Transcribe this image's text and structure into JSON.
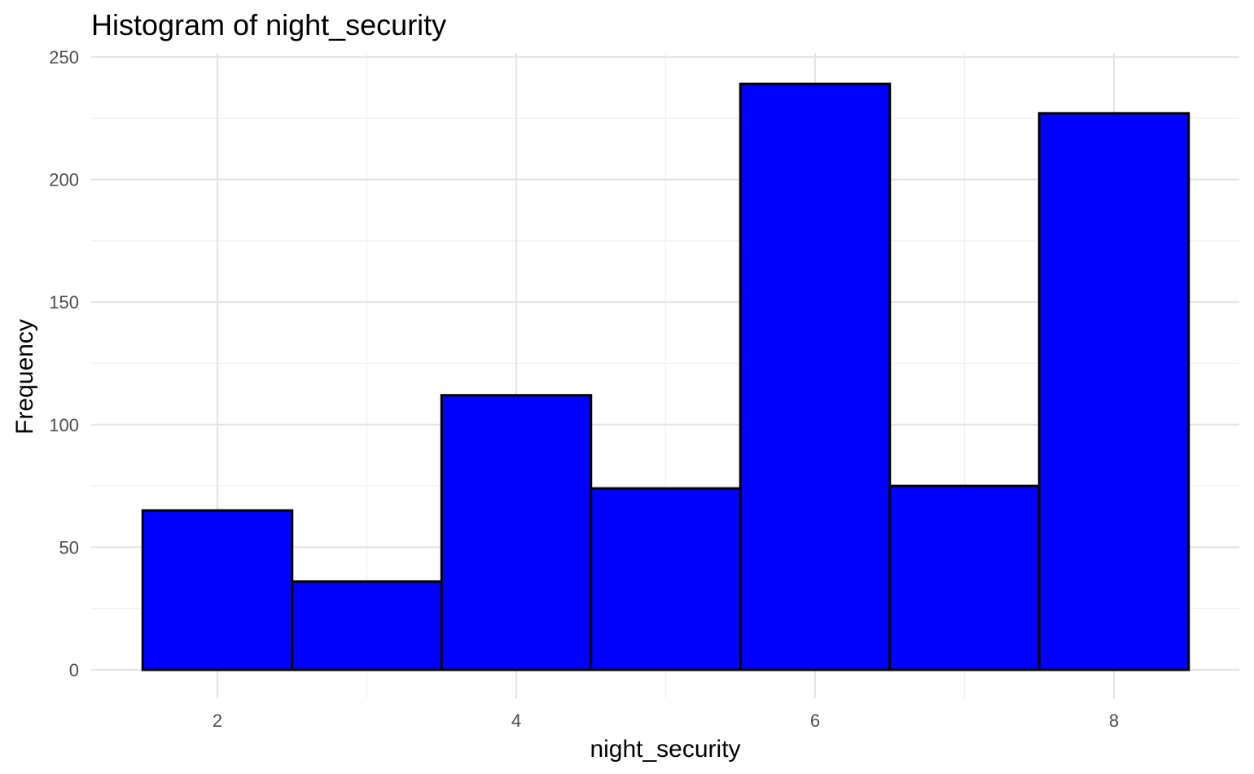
{
  "chart_data": {
    "type": "bar",
    "title": "Histogram of night_security",
    "xlabel": "night_security",
    "ylabel": "Frequency",
    "bins": [
      {
        "x": 2,
        "value": 65
      },
      {
        "x": 3,
        "value": 36
      },
      {
        "x": 4,
        "value": 112
      },
      {
        "x": 5,
        "value": 74
      },
      {
        "x": 6,
        "value": 239
      },
      {
        "x": 7,
        "value": 75
      },
      {
        "x": 8,
        "value": 227
      }
    ],
    "bin_width": 1,
    "xlim": [
      1.5,
      8.5
    ],
    "ylim": [
      0,
      250
    ],
    "x_ticks": [
      2,
      4,
      6,
      8
    ],
    "y_ticks": [
      0,
      50,
      100,
      150,
      200,
      250
    ],
    "grid": true,
    "bar_fill": "#0000ff",
    "bar_outline": "#000000"
  }
}
